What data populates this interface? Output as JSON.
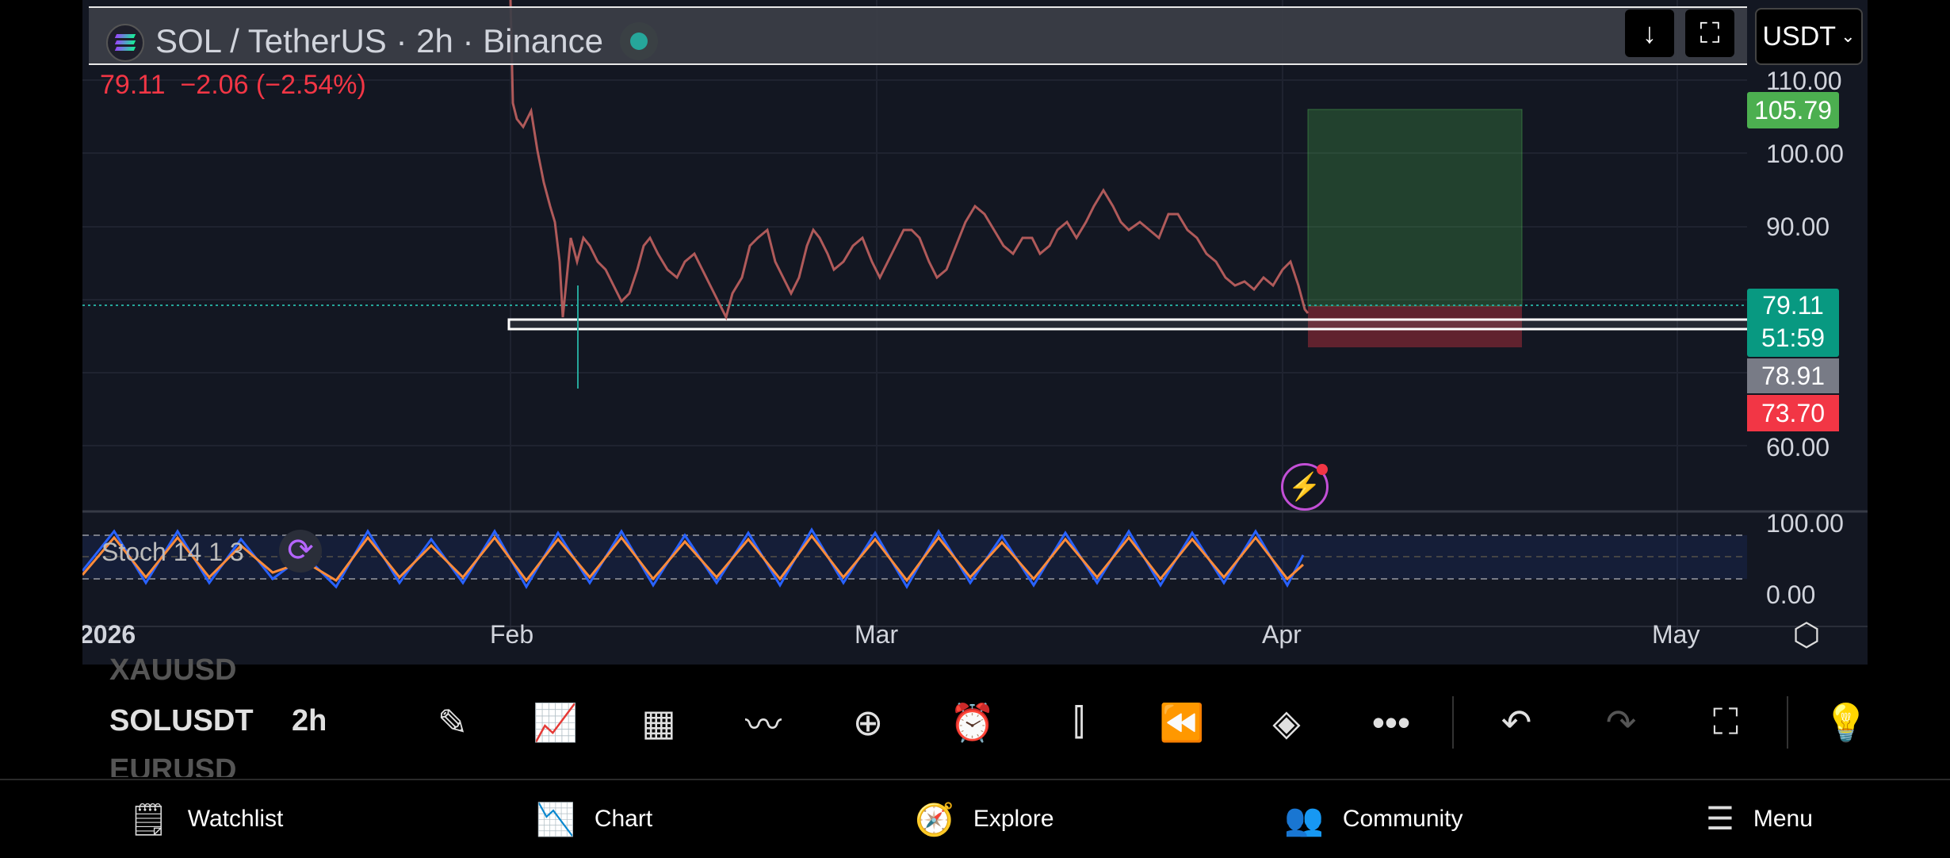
{
  "header": {
    "symbol_title": "SOL / TetherUS · 2h · Binance",
    "currency": "USDT",
    "price_change": "79.11  −2.06 (−2.54%)"
  },
  "price_axis": {
    "ticks": [
      "110.00",
      "100.00",
      "90.00",
      "60.00"
    ],
    "target_label": "105.79",
    "current_price": "79.11",
    "countdown": "51:59",
    "entry_label": "78.91",
    "stop_label": "73.70"
  },
  "indicator": {
    "name": "Stoch 14 1 3",
    "ticks": [
      "100.00",
      "0.00"
    ]
  },
  "time_axis": {
    "labels": [
      "2026",
      "Feb",
      "Mar",
      "Apr",
      "May"
    ]
  },
  "watchlist": {
    "prev_symbol": "XAUUSD",
    "current_symbol": "SOLUSDT",
    "next_symbol": "EURUSD",
    "interval": "2h"
  },
  "toolbar": {
    "icons": [
      "pencil-icon",
      "indicators-icon",
      "grid-icon",
      "trend-icon",
      "plus-circle-icon",
      "alarm-icon",
      "candles-icon",
      "replay-icon",
      "layers-icon",
      "more-icon",
      "undo-icon",
      "redo-icon",
      "fullscreen-icon",
      "idea-icon"
    ]
  },
  "bottom_nav": {
    "watchlist": "Watchlist",
    "chart": "Chart",
    "explore": "Explore",
    "community": "Community",
    "menu": "Menu"
  },
  "colors": {
    "background": "#131722",
    "up": "#26a69a",
    "down": "#ef5350",
    "target": "#4caf50",
    "stop": "#f23645",
    "stoch_k": "#2962ff",
    "stoch_d": "#ff8c3a"
  }
}
